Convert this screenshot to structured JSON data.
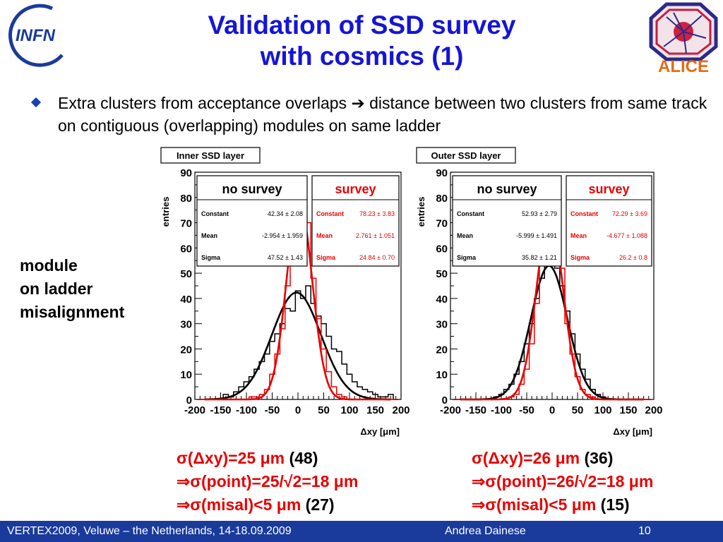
{
  "title_line1": "Validation of SSD survey",
  "title_line2": "with cosmics (1)",
  "logos": {
    "left": "INFN",
    "right": "ALICE"
  },
  "bullet": {
    "before_arrow": "Extra clusters from acceptance overlaps",
    "arrow": "➔",
    "after_arrow": "distance between two clusters from same track on contiguous (overlapping) modules on same ladder"
  },
  "side_label": "module\non ladder\nmisalignment",
  "colors": {
    "title": "#1515d6",
    "no_survey": "#000000",
    "survey": "#e60000",
    "footer": "#1a3b9c"
  },
  "chart_data": [
    {
      "type": "line",
      "title": "Inner SSD layer",
      "xlabel": "Δxy [μm]",
      "ylabel": "entries",
      "xlim": [
        -200,
        200
      ],
      "ylim": [
        0,
        90
      ],
      "x_ticks": [
        -200,
        -150,
        -100,
        -50,
        0,
        50,
        100,
        150,
        200
      ],
      "y_ticks": [
        0,
        5,
        10,
        15,
        20,
        25,
        30,
        35,
        40,
        45,
        50,
        55,
        60,
        65,
        70,
        75,
        80,
        85,
        90
      ],
      "y_tick_labels": [
        0,
        10,
        20,
        30,
        40,
        50,
        60,
        70,
        80,
        90
      ],
      "series": [
        {
          "name": "no survey",
          "color": "#000000",
          "fit": {
            "constant": "42.34 ± 2.08",
            "mean": "-2.954 ± 1.959",
            "sigma": "47.52 ± 1.43"
          },
          "fit_params": [
            42.34,
            -2.954,
            47.52
          ],
          "x": [
            -190,
            -180,
            -170,
            -160,
            -150,
            -140,
            -130,
            -120,
            -110,
            -100,
            -90,
            -80,
            -70,
            -60,
            -50,
            -40,
            -30,
            -20,
            -10,
            0,
            10,
            20,
            30,
            40,
            50,
            60,
            70,
            80,
            90,
            100,
            110,
            120,
            130,
            140,
            150,
            160,
            170,
            180,
            190
          ],
          "values": [
            0,
            0,
            0,
            0,
            0,
            2,
            1,
            3,
            5,
            7,
            9,
            12,
            15,
            18,
            23,
            26,
            30,
            36,
            35,
            43,
            40,
            45,
            38,
            33,
            30,
            25,
            20,
            19,
            14,
            10,
            7,
            5,
            4,
            3,
            2,
            1,
            1,
            2,
            0
          ]
        },
        {
          "name": "survey",
          "color": "#e60000",
          "fit": {
            "constant": "78.23 ± 3.83",
            "mean": "2.761 ± 1.051",
            "sigma": "24.84 ± 0.70"
          },
          "fit_params": [
            78.23,
            2.761,
            24.84
          ],
          "x": [
            -190,
            -180,
            -170,
            -160,
            -150,
            -140,
            -130,
            -120,
            -110,
            -100,
            -90,
            -80,
            -70,
            -60,
            -50,
            -40,
            -30,
            -20,
            -10,
            0,
            10,
            20,
            30,
            40,
            50,
            60,
            70,
            80,
            90,
            100,
            110,
            120,
            130,
            140,
            150,
            160,
            170,
            180,
            190
          ],
          "values": [
            0,
            0,
            0,
            0,
            0,
            0,
            0,
            0,
            0,
            0,
            1,
            1,
            2,
            4,
            10,
            18,
            28,
            45,
            58,
            74,
            80,
            70,
            48,
            32,
            20,
            11,
            5,
            2,
            1,
            0,
            0,
            0,
            0,
            0,
            0,
            0,
            0,
            0,
            0
          ]
        }
      ]
    },
    {
      "type": "line",
      "title": "Outer SSD layer",
      "xlabel": "Δxy [μm]",
      "ylabel": "entries",
      "xlim": [
        -200,
        200
      ],
      "ylim": [
        0,
        90
      ],
      "x_ticks": [
        -200,
        -150,
        -100,
        -50,
        0,
        50,
        100,
        150,
        200
      ],
      "y_ticks": [
        0,
        5,
        10,
        15,
        20,
        25,
        30,
        35,
        40,
        45,
        50,
        55,
        60,
        65,
        70,
        75,
        80,
        85,
        90
      ],
      "y_tick_labels": [
        0,
        10,
        20,
        30,
        40,
        50,
        60,
        70,
        80,
        90
      ],
      "series": [
        {
          "name": "no survey",
          "color": "#000000",
          "fit": {
            "constant": "52.93 ± 2.79",
            "mean": "-5.999 ± 1.491",
            "sigma": "35.82 ± 1.21"
          },
          "fit_params": [
            52.93,
            -5.999,
            35.82
          ],
          "x": [
            -190,
            -180,
            -170,
            -160,
            -150,
            -140,
            -130,
            -120,
            -110,
            -100,
            -90,
            -80,
            -70,
            -60,
            -50,
            -40,
            -30,
            -20,
            -10,
            0,
            10,
            20,
            30,
            40,
            50,
            60,
            70,
            80,
            90,
            100,
            110,
            120,
            130,
            140,
            150,
            160,
            170,
            180,
            190
          ],
          "values": [
            0,
            0,
            0,
            0,
            0,
            0,
            0,
            0,
            1,
            2,
            4,
            6,
            10,
            15,
            22,
            30,
            40,
            48,
            56,
            55,
            52,
            45,
            35,
            26,
            18,
            12,
            8,
            4,
            2,
            1,
            0,
            0,
            0,
            0,
            0,
            0,
            0,
            0,
            0
          ]
        },
        {
          "name": "survey",
          "color": "#e60000",
          "fit": {
            "constant": "72.29 ± 3.69",
            "mean": "-4.677 ± 1.088",
            "sigma": "26.2 ± 0.8"
          },
          "fit_params": [
            72.29,
            -4.677,
            26.2
          ],
          "x": [
            -190,
            -180,
            -170,
            -160,
            -150,
            -140,
            -130,
            -120,
            -110,
            -100,
            -90,
            -80,
            -70,
            -60,
            -50,
            -40,
            -30,
            -20,
            -10,
            0,
            10,
            20,
            30,
            40,
            50,
            60,
            70,
            80,
            90,
            100,
            110,
            120,
            130,
            140,
            150,
            160,
            170,
            180,
            190
          ],
          "values": [
            0,
            0,
            0,
            0,
            0,
            0,
            0,
            0,
            0,
            0,
            0,
            1,
            2,
            6,
            12,
            22,
            38,
            60,
            85,
            72,
            66,
            52,
            30,
            18,
            9,
            4,
            2,
            1,
            0,
            0,
            0,
            0,
            0,
            0,
            0,
            0,
            0,
            0,
            0
          ]
        }
      ]
    }
  ],
  "results": [
    {
      "l1_red": "σ(Δxy)=25 μm",
      "l1_black": "(48)",
      "l2_red": "⇒σ(point)=25/√2=18 μm",
      "l3_red": "⇒σ(misal)<5 μm",
      "l3_black": "(27)"
    },
    {
      "l1_red": "σ(Δxy)=26 μm",
      "l1_black": "(36)",
      "l2_red": "⇒σ(point)=26/√2=18 μm",
      "l3_red": "⇒σ(misal)<5 μm",
      "l3_black": "(15)"
    }
  ],
  "footer": {
    "left": "VERTEX2009, Veluwe – the Netherlands, 14-18.09.2009",
    "center": "Andrea Dainese",
    "page": "10"
  }
}
